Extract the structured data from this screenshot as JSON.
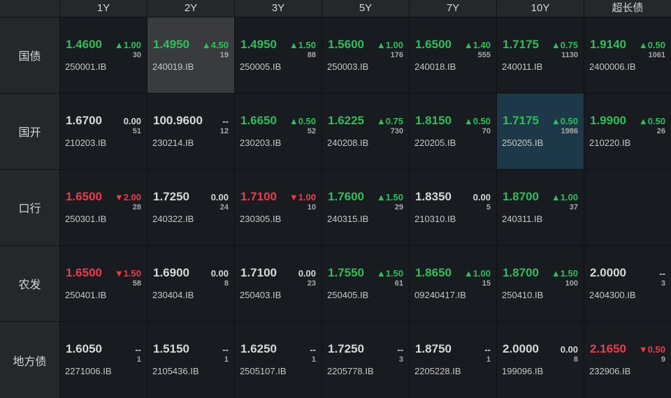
{
  "columns": [
    "1Y",
    "2Y",
    "3Y",
    "5Y",
    "7Y",
    "10Y",
    "超长债"
  ],
  "rows": [
    {
      "label": "国债",
      "cells": [
        {
          "price": "1.4600",
          "dir": "up",
          "change": "▲1.00",
          "volume": "30",
          "code": "250001.IB"
        },
        {
          "price": "1.4950",
          "dir": "up",
          "change": "▲4.50",
          "volume": "19",
          "code": "240019.IB",
          "highlight": "gray"
        },
        {
          "price": "1.4950",
          "dir": "up",
          "change": "▲1.50",
          "volume": "88",
          "code": "250005.IB"
        },
        {
          "price": "1.5600",
          "dir": "up",
          "change": "▲1.00",
          "volume": "176",
          "code": "250003.IB"
        },
        {
          "price": "1.6500",
          "dir": "up",
          "change": "▲1.40",
          "volume": "555",
          "code": "240018.IB"
        },
        {
          "price": "1.7175",
          "dir": "up",
          "change": "▲0.75",
          "volume": "1130",
          "code": "240011.IB"
        },
        {
          "price": "1.9140",
          "dir": "up",
          "change": "▲0.50",
          "volume": "1061",
          "code": "2400006.IB"
        }
      ]
    },
    {
      "label": "国开",
      "cells": [
        {
          "price": "1.6700",
          "dir": "flat",
          "change": "0.00",
          "volume": "51",
          "code": "210203.IB"
        },
        {
          "price": "100.9600",
          "dir": "flat",
          "change": "--",
          "volume": "12",
          "code": "230214.IB"
        },
        {
          "price": "1.6650",
          "dir": "up",
          "change": "▲0.50",
          "volume": "52",
          "code": "230203.IB"
        },
        {
          "price": "1.6225",
          "dir": "up",
          "change": "▲0.75",
          "volume": "730",
          "code": "240208.IB"
        },
        {
          "price": "1.8150",
          "dir": "up",
          "change": "▲0.50",
          "volume": "70",
          "code": "220205.IB"
        },
        {
          "price": "1.7175",
          "dir": "up",
          "change": "▲0.50",
          "volume": "1986",
          "code": "250205.IB",
          "highlight": "teal"
        },
        {
          "price": "1.9900",
          "dir": "up",
          "change": "▲0.50",
          "volume": "26",
          "code": "210220.IB"
        }
      ]
    },
    {
      "label": "口行",
      "cells": [
        {
          "price": "1.6500",
          "dir": "down",
          "change": "▼2.00",
          "volume": "28",
          "code": "250301.IB"
        },
        {
          "price": "1.7250",
          "dir": "flat",
          "change": "0.00",
          "volume": "24",
          "code": "240322.IB"
        },
        {
          "price": "1.7100",
          "dir": "down",
          "change": "▼1.00",
          "volume": "10",
          "code": "230305.IB"
        },
        {
          "price": "1.7600",
          "dir": "up",
          "change": "▲1.50",
          "volume": "29",
          "code": "240315.IB"
        },
        {
          "price": "1.8350",
          "dir": "flat",
          "change": "0.00",
          "volume": "5",
          "code": "210310.IB"
        },
        {
          "price": "1.8700",
          "dir": "up",
          "change": "▲1.00",
          "volume": "37",
          "code": "240311.IB"
        },
        null
      ]
    },
    {
      "label": "农发",
      "cells": [
        {
          "price": "1.6500",
          "dir": "down",
          "change": "▼1.50",
          "volume": "58",
          "code": "250401.IB"
        },
        {
          "price": "1.6900",
          "dir": "flat",
          "change": "0.00",
          "volume": "8",
          "code": "230404.IB"
        },
        {
          "price": "1.7100",
          "dir": "flat",
          "change": "0.00",
          "volume": "23",
          "code": "250403.IB"
        },
        {
          "price": "1.7550",
          "dir": "up",
          "change": "▲1.50",
          "volume": "61",
          "code": "250405.IB"
        },
        {
          "price": "1.8650",
          "dir": "up",
          "change": "▲1.00",
          "volume": "15",
          "code": "09240417.IB"
        },
        {
          "price": "1.8700",
          "dir": "up",
          "change": "▲1.50",
          "volume": "100",
          "code": "250410.IB"
        },
        {
          "price": "2.0000",
          "dir": "flat",
          "change": "--",
          "volume": "3",
          "code": "2404300.IB"
        }
      ]
    },
    {
      "label": "地方债",
      "cells": [
        {
          "price": "1.6050",
          "dir": "flat",
          "change": "--",
          "volume": "1",
          "code": "2271006.IB"
        },
        {
          "price": "1.5150",
          "dir": "flat",
          "change": "--",
          "volume": "1",
          "code": "2105436.IB"
        },
        {
          "price": "1.6250",
          "dir": "flat",
          "change": "--",
          "volume": "1",
          "code": "2505107.IB"
        },
        {
          "price": "1.7250",
          "dir": "flat",
          "change": "--",
          "volume": "3",
          "code": "2205778.IB"
        },
        {
          "price": "1.8750",
          "dir": "flat",
          "change": "--",
          "volume": "1",
          "code": "2205228.IB"
        },
        {
          "price": "2.0000",
          "dir": "flat",
          "change": "0.00",
          "volume": "8",
          "code": "199096.IB"
        },
        {
          "price": "2.1650",
          "dir": "down",
          "change": "▼0.50",
          "volume": "9",
          "code": "232906.IB"
        }
      ]
    }
  ]
}
